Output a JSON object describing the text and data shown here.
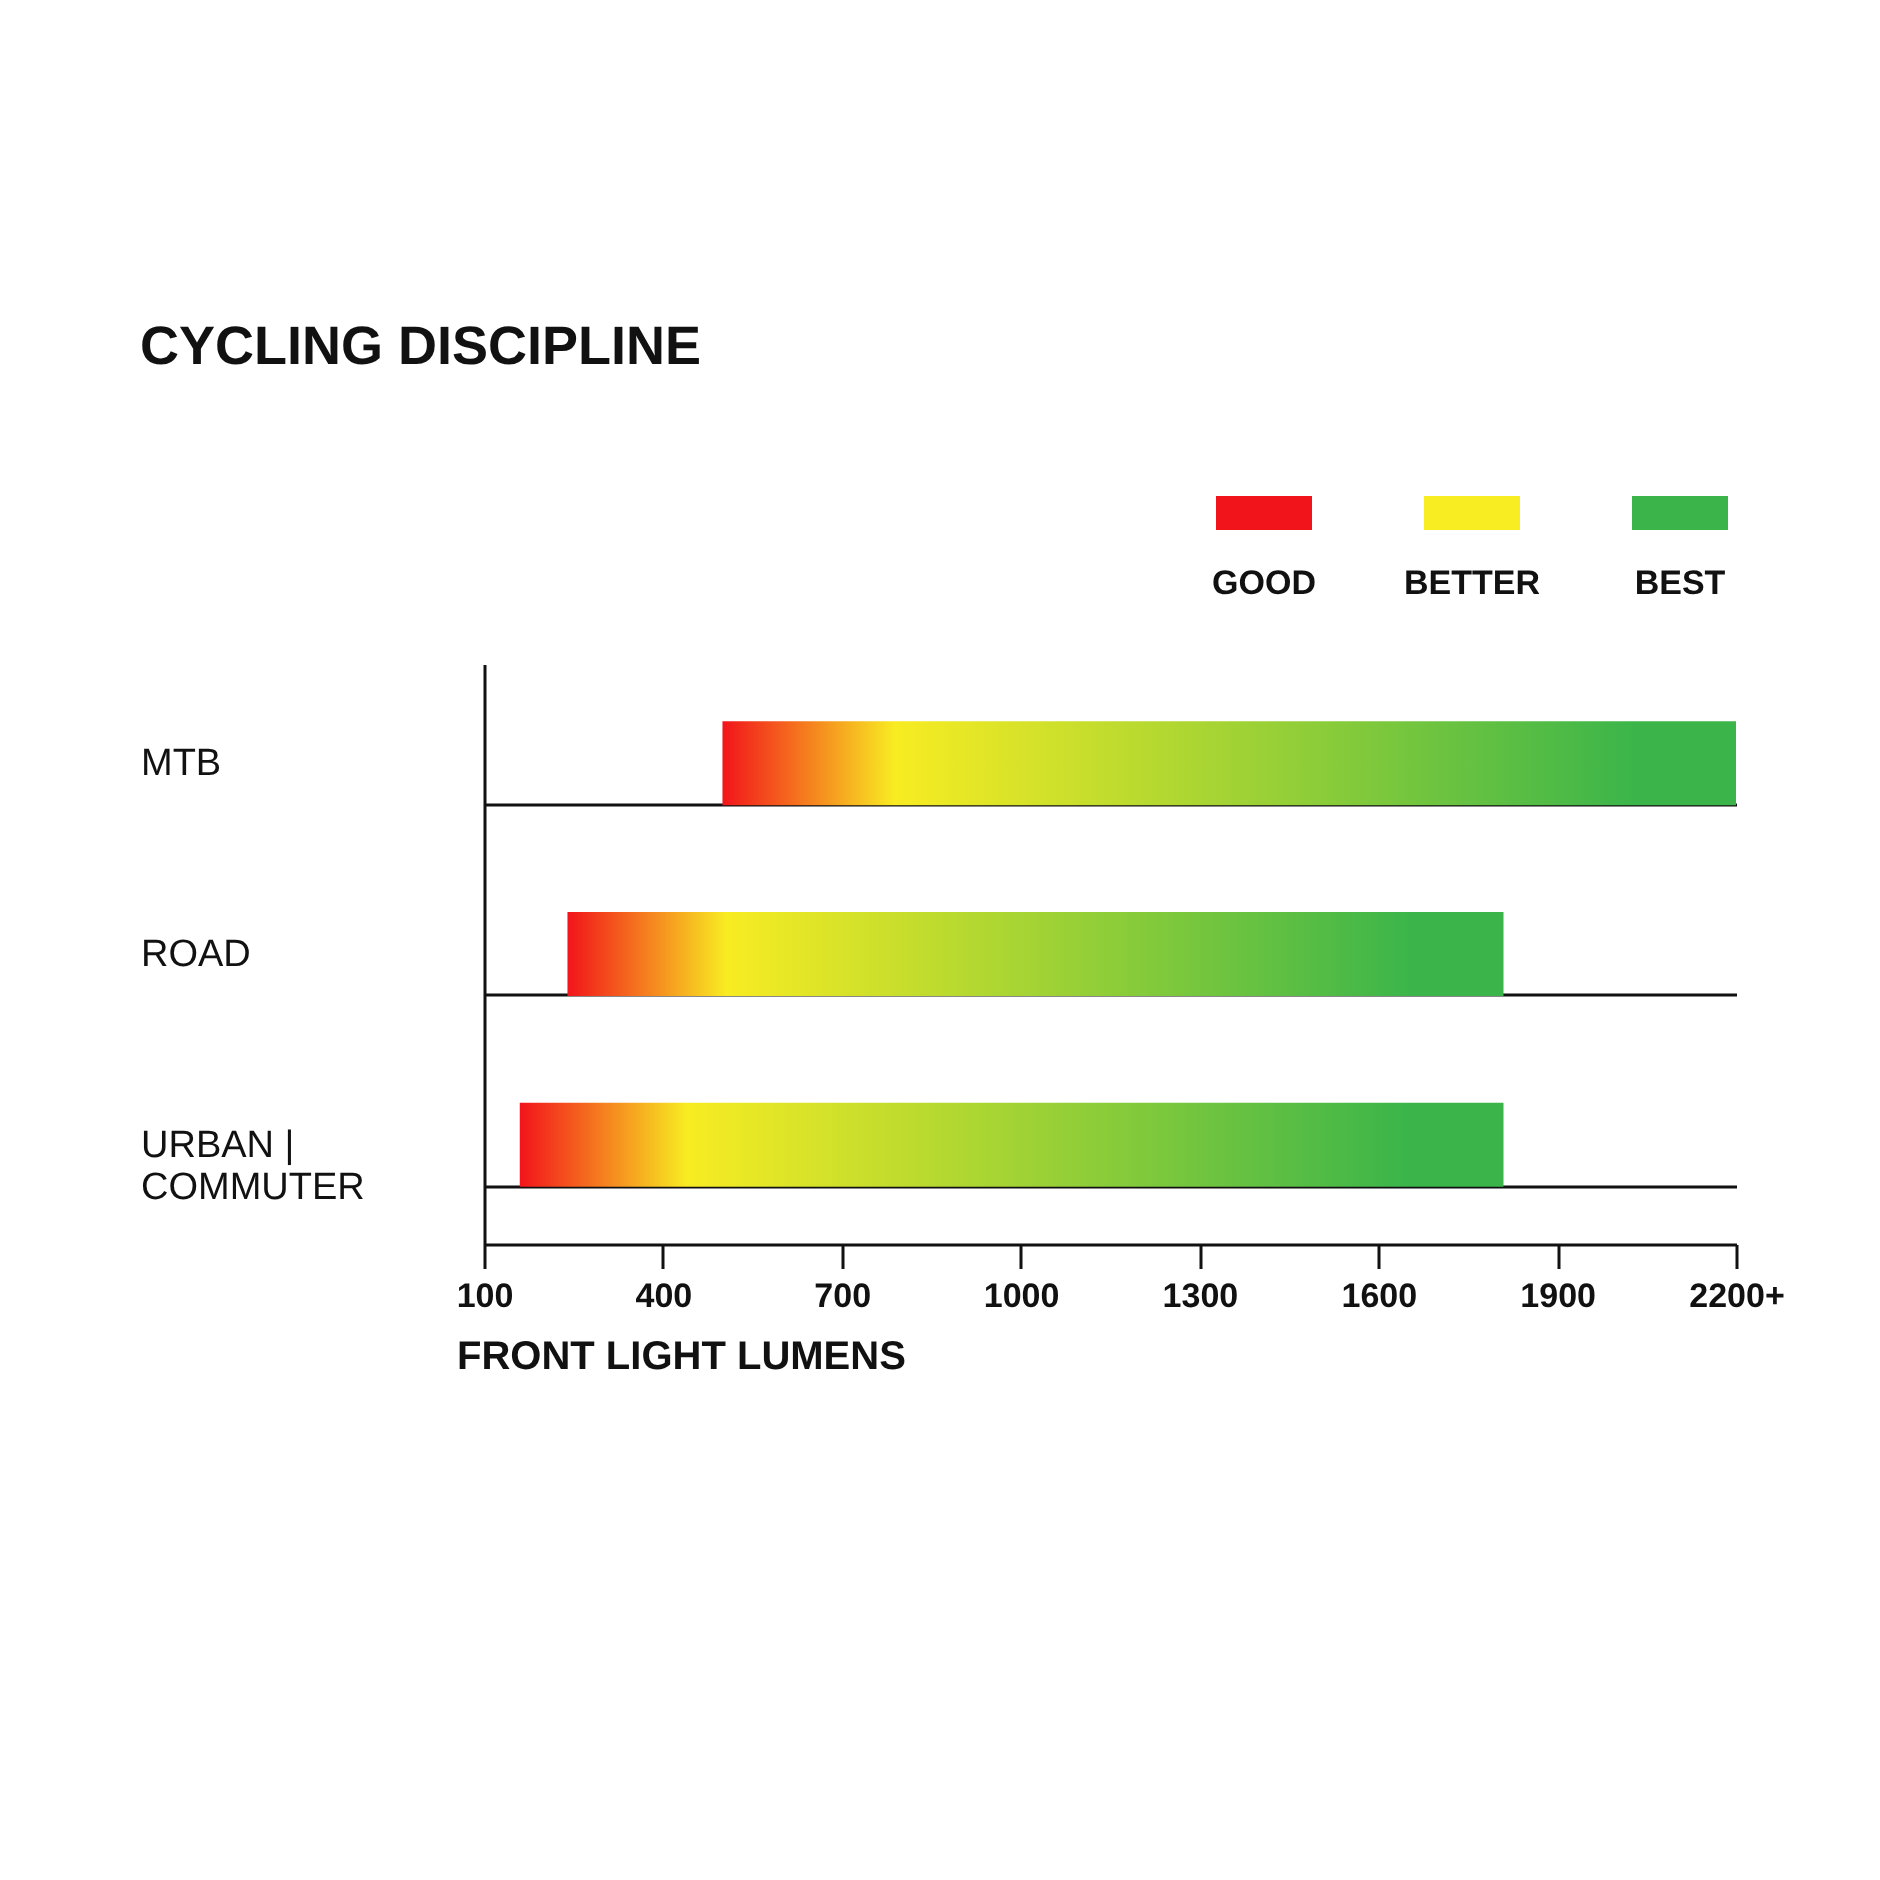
{
  "chart_data": {
    "type": "bar",
    "orientation": "horizontal",
    "title": "CYCLING DISCIPLINE",
    "xlabel": "FRONT LIGHT LUMENS",
    "categories": [
      "MTB",
      "ROAD",
      "URBAN | COMMUTER"
    ],
    "base": [
      500,
      240,
      160
    ],
    "values": [
      1700,
      1570,
      1650
    ],
    "series": [
      {
        "name": "GOOD",
        "color": "#f2141b",
        "values": [
          null,
          null,
          null
        ]
      },
      {
        "name": "BETTER",
        "color": "#f8ec22",
        "values": [
          null,
          null,
          null
        ]
      },
      {
        "name": "BEST",
        "color": "#3bb54a",
        "values": [
          null,
          null,
          null
        ]
      }
    ],
    "xlim": [
      100,
      2200
    ],
    "xticks": [
      100,
      400,
      700,
      1000,
      1300,
      1600,
      1900,
      {
        "value": 2200,
        "label": "2200+"
      }
    ],
    "grid": "y",
    "legend": "top right"
  }
}
